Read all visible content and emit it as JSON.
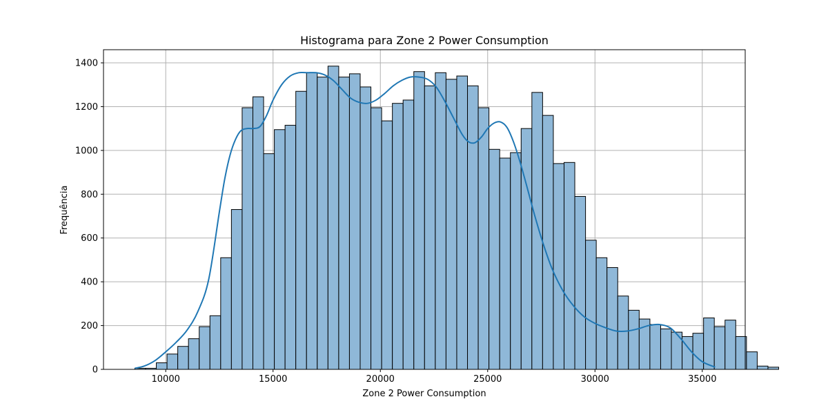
{
  "chart_data": {
    "type": "bar",
    "subtype": "histogram-with-kde",
    "title": "Histograma para Zone 2  Power Consumption",
    "xlabel": "Zone 2  Power Consumption",
    "ylabel": "Frequência",
    "xlim": [
      7100,
      37000
    ],
    "ylim": [
      0,
      1460
    ],
    "grid": true,
    "xticks": [
      10000,
      15000,
      20000,
      25000,
      30000,
      35000
    ],
    "yticks": [
      0,
      200,
      400,
      600,
      800,
      1000,
      1200,
      1400
    ],
    "bin_start": 8560,
    "bin_width": 500,
    "bar_fill": "#8fb8d8",
    "bar_edge": "#000000",
    "kde_color": "#1f77b4",
    "values": [
      5,
      5,
      30,
      70,
      105,
      140,
      195,
      245,
      510,
      730,
      1195,
      1245,
      985,
      1095,
      1115,
      1270,
      1355,
      1335,
      1385,
      1335,
      1350,
      1290,
      1195,
      1135,
      1215,
      1230,
      1360,
      1295,
      1355,
      1325,
      1340,
      1295,
      1195,
      1005,
      965,
      990,
      1100,
      1265,
      1160,
      940,
      945,
      790,
      590,
      510,
      465,
      335,
      270,
      230,
      205,
      185,
      170,
      150,
      165,
      235,
      195,
      225,
      150,
      80,
      15,
      10
    ],
    "kde": {
      "x": [
        8560,
        9000,
        9500,
        10000,
        10500,
        11000,
        11500,
        12000,
        12500,
        12750,
        13000,
        13250,
        13500,
        13800,
        14100,
        14400,
        14700,
        15000,
        15400,
        15800,
        16200,
        16600,
        17000,
        17400,
        17800,
        18200,
        18600,
        19000,
        19400,
        19800,
        20200,
        20600,
        21000,
        21400,
        21800,
        22200,
        22600,
        23000,
        23400,
        23800,
        24100,
        24400,
        24700,
        25000,
        25300,
        25600,
        25900,
        26200,
        26500,
        26800,
        27200,
        27600,
        28000,
        28500,
        29000,
        29500,
        30000,
        30500,
        31000,
        31500,
        32000,
        32500,
        33000,
        33500,
        34000,
        34500,
        35000,
        35600
      ],
      "y": [
        5,
        15,
        40,
        80,
        125,
        180,
        265,
        410,
        720,
        870,
        980,
        1050,
        1090,
        1100,
        1100,
        1110,
        1160,
        1230,
        1300,
        1340,
        1355,
        1355,
        1355,
        1345,
        1320,
        1280,
        1240,
        1220,
        1215,
        1230,
        1260,
        1295,
        1320,
        1335,
        1335,
        1325,
        1290,
        1225,
        1150,
        1075,
        1040,
        1035,
        1060,
        1100,
        1125,
        1130,
        1105,
        1040,
        950,
        845,
        700,
        570,
        460,
        360,
        290,
        240,
        210,
        190,
        175,
        175,
        185,
        200,
        205,
        190,
        140,
        80,
        35,
        10
      ]
    }
  }
}
